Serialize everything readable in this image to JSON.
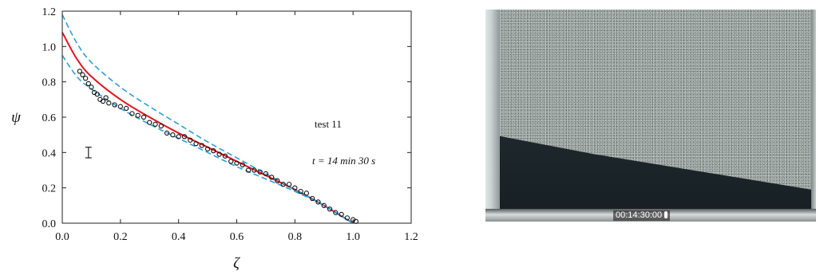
{
  "chart_data": {
    "type": "line",
    "xlabel": "ζ",
    "ylabel": "ψ",
    "xlim": [
      0.0,
      1.2
    ],
    "ylim": [
      0.0,
      1.2
    ],
    "x_ticks": [
      "0.0",
      "0.2",
      "0.4",
      "0.6",
      "0.8",
      "1.0",
      "1.2"
    ],
    "y_ticks": [
      "0.0",
      "0.2",
      "0.4",
      "0.6",
      "0.8",
      "1.0",
      "1.2"
    ],
    "annotations": {
      "test_label": "test 11",
      "time_label": "t = 14 min 30 s"
    },
    "error_bar": {
      "x": 0.09,
      "y_center": 0.4,
      "half_height": 0.03
    },
    "series": [
      {
        "style": "solid",
        "color": "#e8141c",
        "x": [
          0.0,
          0.05,
          0.1,
          0.2,
          0.3,
          0.4,
          0.5,
          0.6,
          0.7,
          0.8,
          0.9,
          1.0
        ],
        "y": [
          1.08,
          0.93,
          0.83,
          0.7,
          0.6,
          0.51,
          0.43,
          0.35,
          0.27,
          0.19,
          0.1,
          0.0
        ]
      },
      {
        "style": "dashed",
        "color": "#2a9fd8",
        "x": [
          0.0,
          0.05,
          0.1,
          0.2,
          0.3,
          0.4,
          0.5,
          0.6,
          0.7,
          0.8,
          0.9,
          1.0
        ],
        "y": [
          1.18,
          1.02,
          0.91,
          0.77,
          0.66,
          0.56,
          0.46,
          0.37,
          0.28,
          0.19,
          0.1,
          0.0
        ]
      },
      {
        "style": "dashed",
        "color": "#2a9fd8",
        "x": [
          0.0,
          0.05,
          0.1,
          0.2,
          0.3,
          0.4,
          0.5,
          0.6,
          0.7,
          0.8,
          0.9,
          1.0
        ],
        "y": [
          0.95,
          0.83,
          0.76,
          0.65,
          0.56,
          0.48,
          0.4,
          0.32,
          0.25,
          0.18,
          0.1,
          0.0
        ]
      }
    ],
    "scatter": {
      "marker": "open-circle",
      "color": "#111111",
      "x": [
        0.06,
        0.07,
        0.08,
        0.09,
        0.1,
        0.11,
        0.12,
        0.13,
        0.14,
        0.15,
        0.16,
        0.18,
        0.2,
        0.22,
        0.24,
        0.26,
        0.28,
        0.3,
        0.32,
        0.34,
        0.36,
        0.38,
        0.4,
        0.42,
        0.44,
        0.46,
        0.48,
        0.5,
        0.52,
        0.54,
        0.56,
        0.58,
        0.6,
        0.62,
        0.64,
        0.66,
        0.68,
        0.7,
        0.72,
        0.74,
        0.76,
        0.78,
        0.8,
        0.82,
        0.84,
        0.86,
        0.88,
        0.9,
        0.92,
        0.94,
        0.96,
        0.98,
        1.0,
        1.01
      ],
      "y": [
        0.86,
        0.84,
        0.82,
        0.79,
        0.77,
        0.74,
        0.73,
        0.7,
        0.69,
        0.71,
        0.68,
        0.67,
        0.66,
        0.65,
        0.62,
        0.61,
        0.6,
        0.57,
        0.56,
        0.55,
        0.51,
        0.5,
        0.49,
        0.49,
        0.47,
        0.45,
        0.44,
        0.42,
        0.41,
        0.39,
        0.38,
        0.35,
        0.34,
        0.33,
        0.3,
        0.3,
        0.29,
        0.28,
        0.26,
        0.24,
        0.22,
        0.22,
        0.2,
        0.18,
        0.17,
        0.14,
        0.12,
        0.1,
        0.08,
        0.06,
        0.05,
        0.03,
        0.02,
        0.01
      ]
    }
  },
  "photo": {
    "timecode": "00:14:30:00"
  }
}
